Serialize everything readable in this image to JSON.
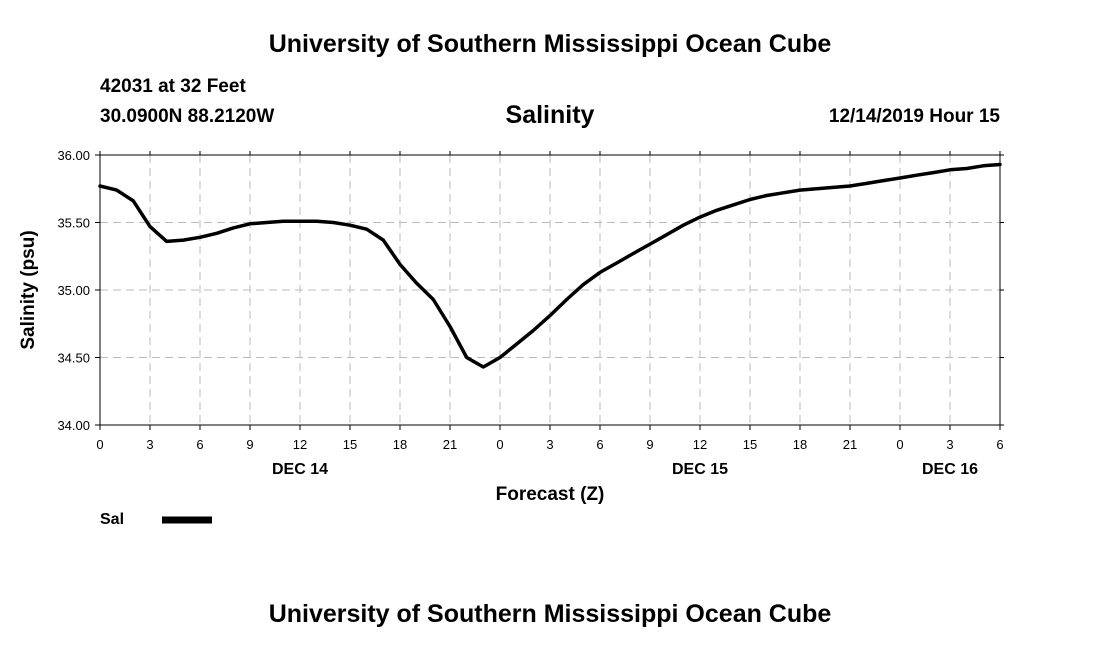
{
  "header": {
    "top_title": "University of Southern Mississippi Ocean Cube",
    "station": "42031 at 32 Feet",
    "coords": "30.0900N 88.2120W",
    "chart_title": "Salinity",
    "forecast_time": "12/14/2019 Hour 15"
  },
  "footer": {
    "bottom_title": "University of Southern Mississippi Ocean Cube"
  },
  "colors": {
    "line": "#000000",
    "grid": "#bbbbbb",
    "axis": "#000000",
    "background": "#ffffff"
  },
  "chart_data": {
    "type": "line",
    "title": "Salinity",
    "xlabel": "Forecast (Z)",
    "ylabel": "Salinity (psu)",
    "xlim": [
      0,
      54
    ],
    "ylim": [
      34.0,
      36.0
    ],
    "x_unit": "hours from DEC 14 00Z",
    "x_ticks": [
      0,
      3,
      6,
      9,
      12,
      15,
      18,
      21,
      24,
      27,
      30,
      33,
      36,
      39,
      42,
      45,
      48,
      51,
      54
    ],
    "x_tick_labels": [
      "0",
      "3",
      "6",
      "9",
      "12",
      "15",
      "18",
      "21",
      "0",
      "3",
      "6",
      "9",
      "12",
      "15",
      "18",
      "21",
      "0",
      "3",
      "6"
    ],
    "y_ticks": [
      34.0,
      34.5,
      35.0,
      35.5,
      36.0
    ],
    "y_tick_labels": [
      "34.00",
      "34.50",
      "35.00",
      "35.50",
      "36.00"
    ],
    "day_labels": [
      {
        "x": 12,
        "label": "DEC 14"
      },
      {
        "x": 36,
        "label": "DEC 15"
      },
      {
        "x": 51,
        "label": "DEC 16"
      }
    ],
    "grid": true,
    "legend": [
      {
        "name": "Sal",
        "position": "bottom-left"
      }
    ],
    "series": [
      {
        "name": "Sal",
        "x": [
          0,
          1,
          2,
          3,
          4,
          5,
          6,
          7,
          8,
          9,
          10,
          11,
          12,
          13,
          14,
          15,
          16,
          17,
          18,
          19,
          20,
          21,
          22,
          23,
          24,
          25,
          26,
          27,
          28,
          29,
          30,
          31,
          32,
          33,
          34,
          35,
          36,
          37,
          38,
          39,
          40,
          41,
          42,
          43,
          44,
          45,
          46,
          47,
          48,
          49,
          50,
          51,
          52,
          53,
          54
        ],
        "values": [
          35.77,
          35.74,
          35.66,
          35.47,
          35.36,
          35.37,
          35.39,
          35.42,
          35.46,
          35.49,
          35.5,
          35.51,
          35.51,
          35.51,
          35.5,
          35.48,
          35.45,
          35.37,
          35.19,
          35.05,
          34.93,
          34.73,
          34.5,
          34.43,
          34.5,
          34.6,
          34.7,
          34.81,
          34.93,
          35.04,
          35.13,
          35.2,
          35.27,
          35.34,
          35.41,
          35.48,
          35.54,
          35.59,
          35.63,
          35.67,
          35.7,
          35.72,
          35.74,
          35.75,
          35.76,
          35.77,
          35.79,
          35.81,
          35.83,
          35.85,
          35.87,
          35.89,
          35.9,
          35.92,
          35.93
        ]
      }
    ]
  }
}
